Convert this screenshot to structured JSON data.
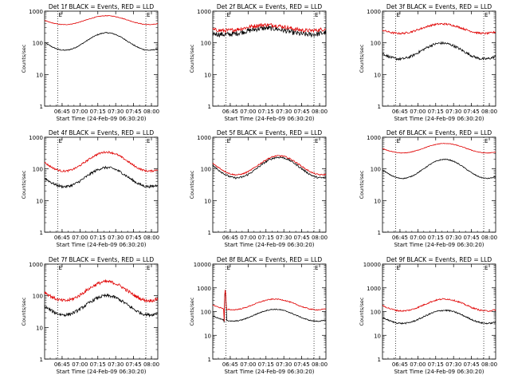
{
  "figure": {
    "colors": {
      "events": "#000000",
      "lld": "#e00000",
      "axis": "#000000"
    },
    "ylabel": "Counts/sec",
    "xlabel": "Start Time (24-Feb-09 06:30:20)",
    "xticks": [
      "06:45",
      "07:00",
      "07:15",
      "07:30",
      "07:45",
      "08:00"
    ],
    "yticks": [
      "1",
      "10",
      "100",
      "1000",
      "10000"
    ],
    "markers": [
      "E",
      "E"
    ]
  },
  "chart_data": [
    {
      "type": "line",
      "title": "Det 1f BLACK = Events, RED = LLD",
      "ylim": [
        1,
        1000
      ],
      "yscale": "log",
      "series": [
        {
          "name": "Events",
          "color": "#000000",
          "base": 110,
          "amp": 0.55,
          "phase": 0,
          "noise": 0.015
        },
        {
          "name": "LLD",
          "color": "#e00000",
          "base": 520,
          "amp": 0.28,
          "phase": 0,
          "noise": 0.01
        }
      ]
    },
    {
      "type": "line",
      "title": "Det 2f BLACK = Events, RED = LLD",
      "ylim": [
        1,
        1000
      ],
      "yscale": "log",
      "series": [
        {
          "name": "Events",
          "color": "#000000",
          "base": 230,
          "amp": 0.2,
          "phase": 0.6,
          "noise": 0.08
        },
        {
          "name": "LLD",
          "color": "#e00000",
          "base": 300,
          "amp": 0.18,
          "phase": 0.6,
          "noise": 0.06
        }
      ]
    },
    {
      "type": "line",
      "title": "Det 3f BLACK = Events, RED = LLD",
      "ylim": [
        1,
        1000
      ],
      "yscale": "log",
      "series": [
        {
          "name": "Events",
          "color": "#000000",
          "base": 55,
          "amp": 0.5,
          "phase": 0.2,
          "noise": 0.04
        },
        {
          "name": "LLD",
          "color": "#e00000",
          "base": 280,
          "amp": 0.3,
          "phase": 0.2,
          "noise": 0.03
        }
      ]
    },
    {
      "type": "line",
      "title": "Det 4f BLACK = Events, RED = LLD",
      "ylim": [
        1,
        1000
      ],
      "yscale": "log",
      "series": [
        {
          "name": "Events",
          "color": "#000000",
          "base": 55,
          "amp": 0.6,
          "phase": 0,
          "noise": 0.04
        },
        {
          "name": "LLD",
          "color": "#e00000",
          "base": 170,
          "amp": 0.6,
          "phase": 0,
          "noise": 0.03
        }
      ]
    },
    {
      "type": "line",
      "title": "Det 5f BLACK = Events, RED = LLD",
      "ylim": [
        1,
        1000
      ],
      "yscale": "log",
      "series": [
        {
          "name": "Events",
          "color": "#000000",
          "base": 110,
          "amp": 0.65,
          "phase": -0.3,
          "noise": 0.03
        },
        {
          "name": "LLD",
          "color": "#e00000",
          "base": 130,
          "amp": 0.6,
          "phase": -0.3,
          "noise": 0.02
        }
      ]
    },
    {
      "type": "line",
      "title": "Det 6f BLACK = Events, RED = LLD",
      "ylim": [
        1,
        1000
      ],
      "yscale": "log",
      "series": [
        {
          "name": "Events",
          "color": "#000000",
          "base": 100,
          "amp": 0.6,
          "phase": 0,
          "noise": 0.015
        },
        {
          "name": "LLD",
          "color": "#e00000",
          "base": 450,
          "amp": 0.3,
          "phase": 0,
          "noise": 0.01
        }
      ]
    },
    {
      "type": "line",
      "title": "Det 7f BLACK = Events, RED = LLD",
      "ylim": [
        1,
        1000
      ],
      "yscale": "log",
      "series": [
        {
          "name": "Events",
          "color": "#000000",
          "base": 50,
          "amp": 0.6,
          "phase": 0,
          "noise": 0.05
        },
        {
          "name": "LLD",
          "color": "#e00000",
          "base": 140,
          "amp": 0.6,
          "phase": 0,
          "noise": 0.05
        }
      ]
    },
    {
      "type": "line",
      "title": "Det 8f BLACK = Events, RED = LLD",
      "ylim": [
        1,
        10000
      ],
      "yscale": "log",
      "series": [
        {
          "name": "Events",
          "color": "#000000",
          "base": 70,
          "amp": 0.5,
          "phase": 0,
          "noise": 0.02,
          "spike": 800
        },
        {
          "name": "LLD",
          "color": "#e00000",
          "base": 200,
          "amp": 0.45,
          "phase": 0,
          "noise": 0.02,
          "spike": 900
        }
      ]
    },
    {
      "type": "line",
      "title": "Det 9f BLACK = Events, RED = LLD",
      "ylim": [
        1,
        10000
      ],
      "yscale": "log",
      "series": [
        {
          "name": "Events",
          "color": "#000000",
          "base": 60,
          "amp": 0.55,
          "phase": 0,
          "noise": 0.03
        },
        {
          "name": "LLD",
          "color": "#e00000",
          "base": 190,
          "amp": 0.5,
          "phase": 0,
          "noise": 0.03
        }
      ]
    }
  ]
}
